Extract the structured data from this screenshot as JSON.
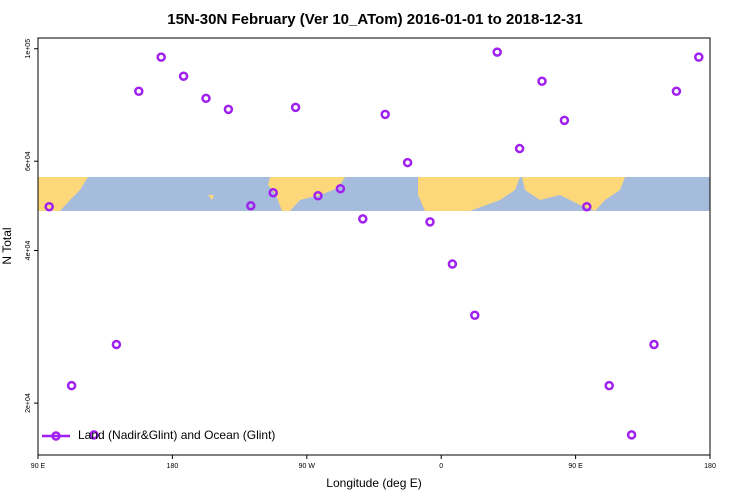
{
  "chart_data": {
    "type": "scatter",
    "title": "15N-30N February (Ver 10_ATom)   2016-01-01 to 2018-12-31",
    "x_label": "Longitude (deg E)",
    "y_label": "N Total",
    "xlim": [
      90,
      540
    ],
    "xticks": [
      {
        "value": 90,
        "label": "90 E"
      },
      {
        "value": 180,
        "label": "180"
      },
      {
        "value": 270,
        "label": "90 W"
      },
      {
        "value": 360,
        "label": "0"
      },
      {
        "value": 450,
        "label": "90 E"
      },
      {
        "value": 540,
        "label": "180"
      }
    ],
    "ylim": [
      15800,
      105000
    ],
    "yticks": [
      {
        "value": 20000,
        "label": "2e+04"
      },
      {
        "value": 40000,
        "label": "4e+04"
      },
      {
        "value": 60000,
        "label": "6e+04"
      },
      {
        "value": 100000,
        "label": "1e+05"
      }
    ],
    "log_y": true,
    "legend_position": "bottomleft",
    "series": [
      {
        "name": "Land (Nadir&Glint) and Ocean (Glint)",
        "color": "#a020f0",
        "x": [
          97.5,
          112.5,
          127.5,
          142.5,
          157.5,
          172.5,
          187.5,
          202.5,
          217.5,
          232.5,
          247.5,
          262.5,
          277.5,
          292.5,
          307.5,
          322.5,
          337.5,
          352.5,
          367.5,
          382.5,
          397.5,
          412.5,
          427.5,
          442.5,
          457.5,
          472.5,
          487.5,
          502.5,
          517.5,
          532.5
        ],
        "values": [
          48800,
          21650,
          17310,
          26100,
          82450,
          96270,
          88270,
          79840,
          75930,
          49000,
          51990,
          76630,
          51290,
          52960,
          46170,
          74220,
          59630,
          45550,
          37610,
          29810,
          98490,
          63550,
          86280,
          72220,
          48800,
          21650,
          17310,
          26100,
          82450,
          96270
        ]
      }
    ]
  }
}
